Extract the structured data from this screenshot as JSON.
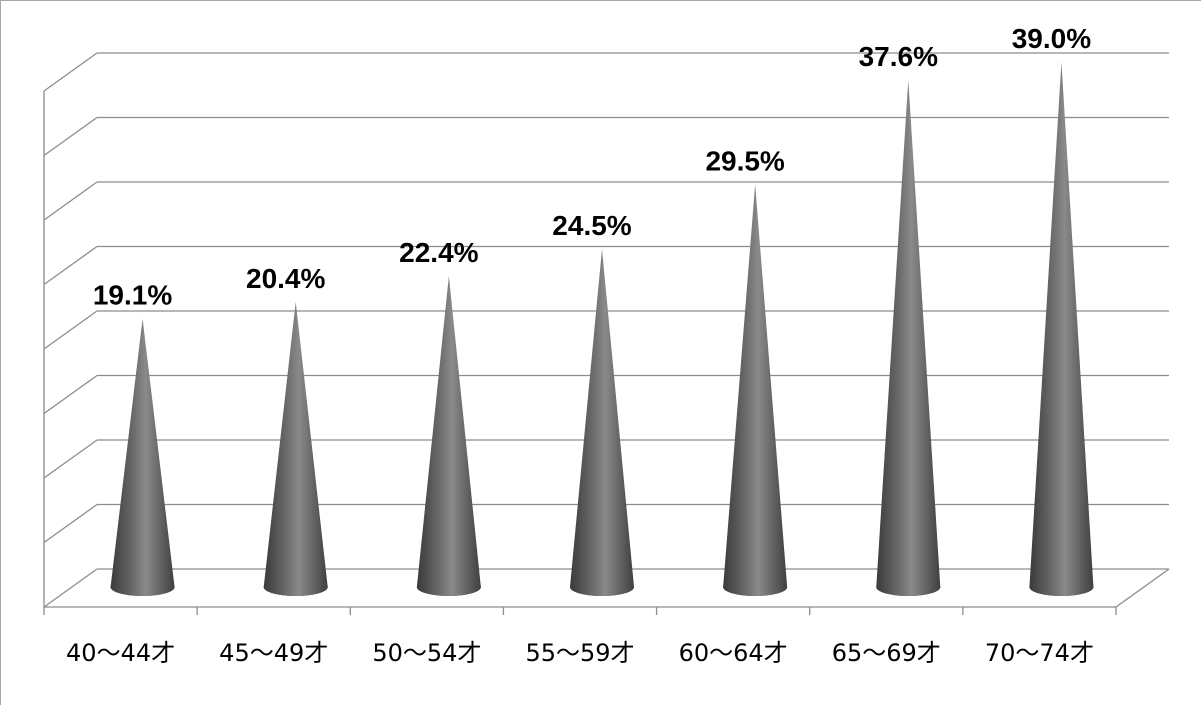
{
  "chart_data": {
    "type": "bar",
    "shape": "cone-3d",
    "categories": [
      "40〜44才",
      "45〜49才",
      "50〜54才",
      "55〜59才",
      "60〜64才",
      "65〜69才",
      "70〜74才"
    ],
    "values": [
      19.1,
      20.4,
      22.4,
      24.5,
      29.5,
      37.6,
      39.0
    ],
    "data_labels": [
      "19.1%",
      "20.4%",
      "22.4%",
      "24.5%",
      "29.5%",
      "37.6%",
      "39.0%"
    ],
    "title": "",
    "xlabel": "",
    "ylabel": "",
    "ylim": [
      0,
      40
    ],
    "gridlines": 8,
    "grid": true,
    "legend": "none",
    "colors": {
      "cone": "#595959",
      "grid": "#8c8c8c",
      "axis": "#8c8c8c"
    }
  }
}
